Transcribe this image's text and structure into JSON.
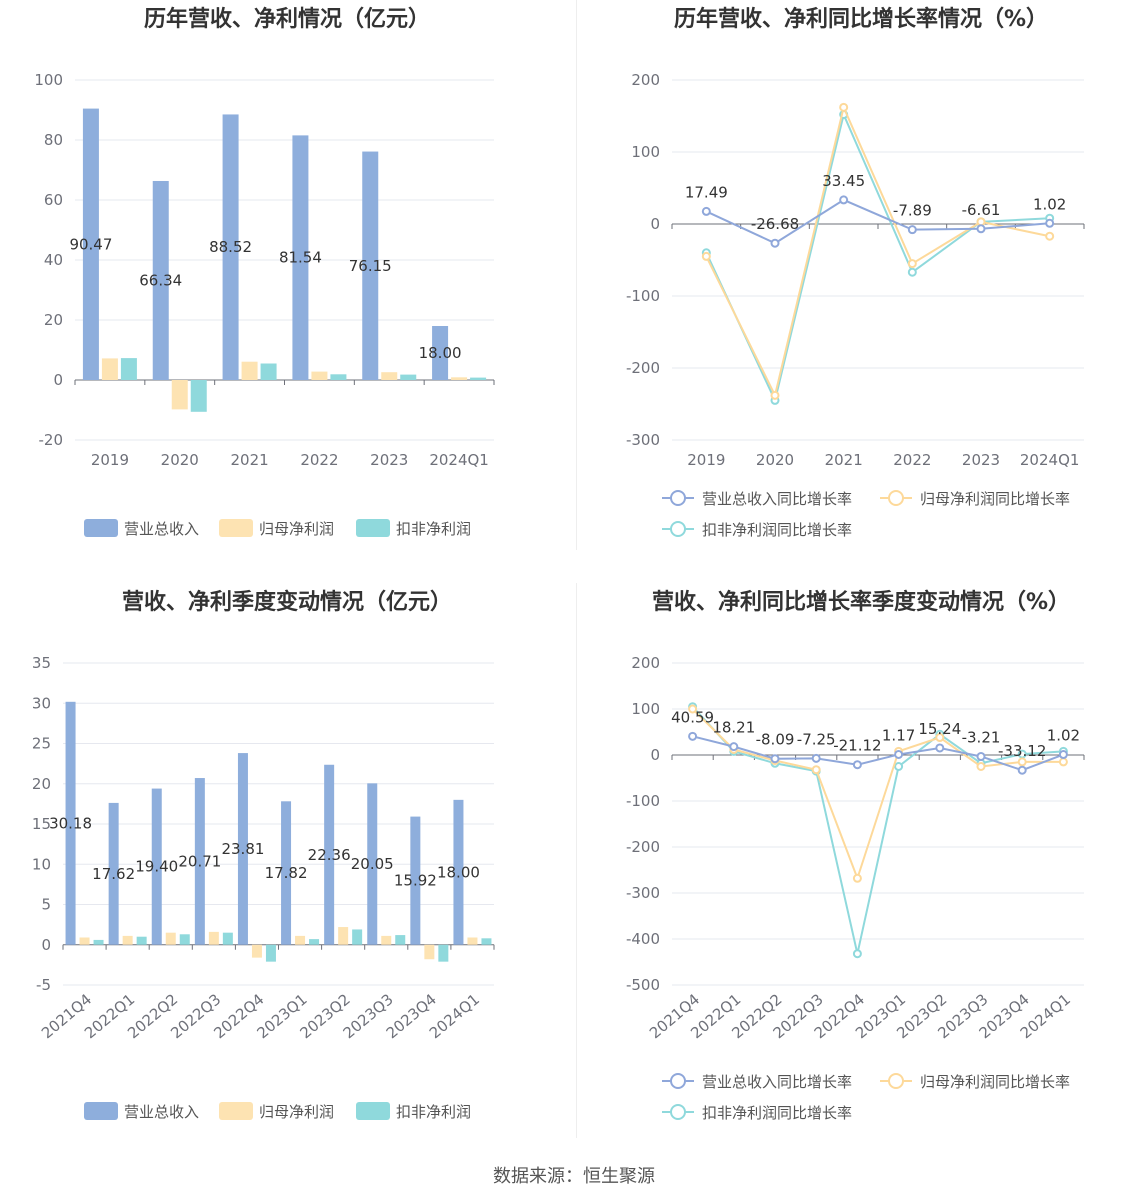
{
  "colors": {
    "revenue": "#8eaedc",
    "net_profit": "#fde3b2",
    "deducted_profit": "#8fd9dc",
    "revenue_line": "#8fa7da",
    "net_profit_line": "#fdd99a",
    "deducted_line": "#8fd9dc"
  },
  "source": "数据来源：恒生聚源",
  "chart_data": [
    {
      "type": "bar",
      "title": "历年营收、净利情况（亿元）",
      "categories": [
        "2019",
        "2020",
        "2021",
        "2022",
        "2023",
        "2024Q1"
      ],
      "ylim": [
        -20,
        100
      ],
      "yticks": [
        -20,
        0,
        20,
        40,
        60,
        80,
        100
      ],
      "legend": [
        "营业总收入",
        "归母净利润",
        "扣非净利润"
      ],
      "series": [
        {
          "name": "营业总收入",
          "values": [
            90.47,
            66.34,
            88.52,
            81.54,
            76.15,
            18.0
          ],
          "labels": [
            "90.47",
            "66.34",
            "88.52",
            "81.54",
            "76.15",
            "18.00"
          ]
        },
        {
          "name": "归母净利润",
          "values": [
            7.2,
            -9.8,
            6.1,
            2.8,
            2.6,
            0.9
          ]
        },
        {
          "name": "扣非净利润",
          "values": [
            7.3,
            -10.6,
            5.5,
            1.9,
            1.8,
            0.8
          ]
        }
      ]
    },
    {
      "type": "line",
      "title": "历年营收、净利同比增长率情况（%）",
      "categories": [
        "2019",
        "2020",
        "2021",
        "2022",
        "2023",
        "2024Q1"
      ],
      "ylim": [
        -300,
        200
      ],
      "yticks": [
        -300,
        -200,
        -100,
        0,
        100,
        200
      ],
      "legend": [
        "营业总收入同比增长率",
        "归母净利润同比增长率",
        "扣非净利润同比增长率"
      ],
      "series": [
        {
          "name": "营业总收入同比增长率",
          "values": [
            17.49,
            -26.68,
            33.45,
            -7.89,
            -6.61,
            1.02
          ],
          "labels": [
            "17.49",
            "-26.68",
            "33.45",
            "-7.89",
            "-6.61",
            "1.02"
          ]
        },
        {
          "name": "归母净利润同比增长率",
          "values": [
            -45,
            -238,
            162,
            -55,
            3,
            -17
          ]
        },
        {
          "name": "扣非净利润同比增长率",
          "values": [
            -40,
            -245,
            152,
            -67,
            3,
            8
          ]
        }
      ]
    },
    {
      "type": "bar",
      "title": "营收、净利季度变动情况（亿元）",
      "categories": [
        "2021Q4",
        "2022Q1",
        "2022Q2",
        "2022Q3",
        "2022Q4",
        "2023Q1",
        "2023Q2",
        "2023Q3",
        "2023Q4",
        "2024Q1"
      ],
      "ylim": [
        -5,
        35
      ],
      "yticks": [
        -5,
        0,
        5,
        10,
        15,
        20,
        25,
        30,
        35
      ],
      "legend": [
        "营业总收入",
        "归母净利润",
        "扣非净利润"
      ],
      "series": [
        {
          "name": "营业总收入",
          "values": [
            30.18,
            17.62,
            19.4,
            20.71,
            23.81,
            17.82,
            22.36,
            20.05,
            15.92,
            18.0
          ],
          "labels": [
            "30.18",
            "17.62",
            "19.40",
            "20.71",
            "23.81",
            "17.82",
            "22.36",
            "20.05",
            "15.92",
            "18.00"
          ]
        },
        {
          "name": "归母净利润",
          "values": [
            0.9,
            1.1,
            1.5,
            1.6,
            -1.6,
            1.1,
            2.2,
            1.1,
            -1.8,
            0.9
          ]
        },
        {
          "name": "扣非净利润",
          "values": [
            0.6,
            1.0,
            1.3,
            1.5,
            -2.1,
            0.7,
            1.9,
            1.2,
            -2.1,
            0.8
          ]
        }
      ]
    },
    {
      "type": "line",
      "title": "营收、净利同比增长率季度变动情况（%）",
      "categories": [
        "2021Q4",
        "2022Q1",
        "2022Q2",
        "2022Q3",
        "2022Q4",
        "2023Q1",
        "2023Q2",
        "2023Q3",
        "2023Q4",
        "2024Q1"
      ],
      "ylim": [
        -500,
        200
      ],
      "yticks": [
        -500,
        -400,
        -300,
        -200,
        -100,
        0,
        100,
        200
      ],
      "legend": [
        "营业总收入同比增长率",
        "归母净利润同比增长率",
        "扣非净利润同比增长率"
      ],
      "series": [
        {
          "name": "营业总收入同比增长率",
          "values": [
            40.59,
            18.21,
            -8.09,
            -7.25,
            -21.12,
            1.17,
            15.24,
            -3.21,
            -33.12,
            1.02
          ],
          "labels": [
            "40.59",
            "18.21",
            "-8.09",
            "-7.25",
            "-21.12",
            "1.17",
            "15.24",
            "-3.21",
            "-33.12",
            "1.02"
          ]
        },
        {
          "name": "归母净利润同比增长率",
          "values": [
            100,
            12,
            -12,
            -32,
            -268,
            8,
            38,
            -25,
            -15,
            -15
          ]
        },
        {
          "name": "扣非净利润同比增长率",
          "values": [
            105,
            8,
            -18,
            -35,
            -432,
            -25,
            45,
            -18,
            2,
            8
          ]
        }
      ]
    }
  ]
}
